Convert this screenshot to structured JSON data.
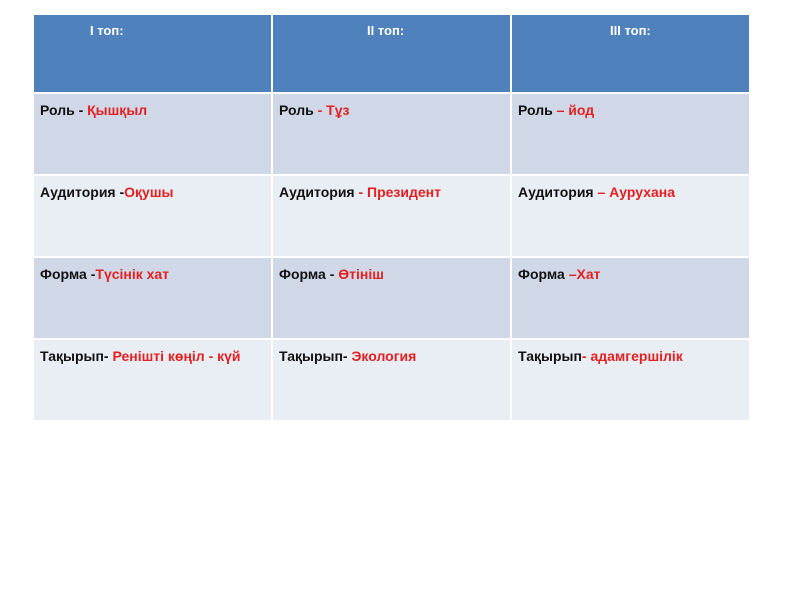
{
  "headers": [
    "I  топ:",
    "II  топ:",
    "III  топ:"
  ],
  "rows": [
    [
      {
        "label": "Роль - ",
        "value": "Қышқыл"
      },
      {
        "label": "Роль",
        "value": " - Тұз"
      },
      {
        "label": "Роль ",
        "value": "– йод"
      }
    ],
    [
      {
        "label": "Аудитория -",
        "value": "Оқушы"
      },
      {
        "label": "Аудитория",
        "value": " - Президент"
      },
      {
        "label": "Аудитория ",
        "value": "– Аурухана"
      }
    ],
    [
      {
        "label": "Форма -",
        "value": "Түсінік  хат"
      },
      {
        "label": "Форма - ",
        "value": "Өтініш"
      },
      {
        "label": "Форма ",
        "value": "–Хат"
      }
    ],
    [
      {
        "label": "Тақырып- ",
        "value": "Ренішті  көңіл - күй"
      },
      {
        "label": "Тақырып- ",
        "value": "Экология"
      },
      {
        "label": "Тақырып",
        "value": "- адамгершілік"
      }
    ]
  ],
  "colors": {
    "header": "#4f81bd",
    "row_dark": "#d0d8e8",
    "row_light": "#e9edf4",
    "accent": "#e41f1f"
  }
}
